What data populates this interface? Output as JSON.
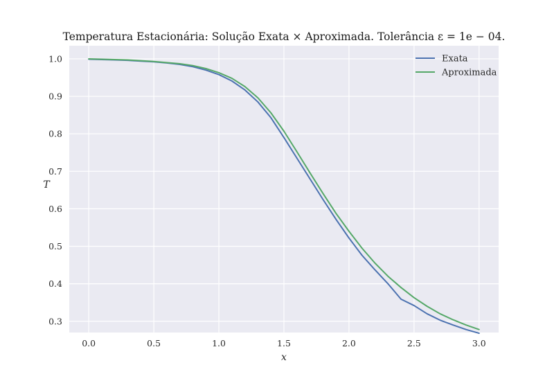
{
  "chart_data": {
    "type": "line",
    "title": "Temperatura Estacionária: Solução Exata × Aproximada. Tolerância ε = 1e − 04.",
    "xlabel": "x",
    "ylabel": "T",
    "xlim": [
      -0.15,
      3.15
    ],
    "ylim": [
      0.27,
      1.035
    ],
    "xticks": [
      0.0,
      0.5,
      1.0,
      1.5,
      2.0,
      2.5,
      3.0
    ],
    "xtick_labels": [
      "0.0",
      "0.5",
      "1.0",
      "1.5",
      "2.0",
      "2.5",
      "3.0"
    ],
    "yticks": [
      0.3,
      0.4,
      0.5,
      0.6,
      0.7,
      0.8,
      0.9,
      1.0
    ],
    "ytick_labels": [
      "0.3",
      "0.4",
      "0.5",
      "0.6",
      "0.7",
      "0.8",
      "0.9",
      "1.0"
    ],
    "grid": true,
    "legend_position": "top-right",
    "background": "#eaeaf2",
    "grid_color": "#ffffff",
    "series": [
      {
        "name": "Exata",
        "color": "#4c72b0",
        "x": [
          0.0,
          0.1,
          0.2,
          0.3,
          0.4,
          0.5,
          0.6,
          0.7,
          0.8,
          0.9,
          1.0,
          1.1,
          1.2,
          1.3,
          1.4,
          1.5,
          1.6,
          1.7,
          1.8,
          1.9,
          2.0,
          2.1,
          2.2,
          2.3,
          2.4,
          2.5,
          2.6,
          2.7,
          2.8,
          2.9,
          3.0
        ],
        "y": [
          0.999,
          0.998,
          0.997,
          0.996,
          0.994,
          0.992,
          0.989,
          0.985,
          0.979,
          0.97,
          0.958,
          0.941,
          0.917,
          0.885,
          0.843,
          0.79,
          0.735,
          0.68,
          0.625,
          0.572,
          0.522,
          0.476,
          0.437,
          0.4,
          0.359,
          0.342,
          0.32,
          0.303,
          0.29,
          0.278,
          0.268
        ]
      },
      {
        "name": "Aproximada",
        "color": "#55a868",
        "x": [
          0.0,
          0.1,
          0.2,
          0.3,
          0.4,
          0.5,
          0.6,
          0.7,
          0.8,
          0.9,
          1.0,
          1.1,
          1.2,
          1.3,
          1.4,
          1.5,
          1.6,
          1.7,
          1.8,
          1.9,
          2.0,
          2.1,
          2.2,
          2.3,
          2.4,
          2.5,
          2.6,
          2.7,
          2.8,
          2.9,
          3.0
        ],
        "y": [
          1.0,
          0.999,
          0.998,
          0.997,
          0.995,
          0.993,
          0.99,
          0.987,
          0.982,
          0.974,
          0.963,
          0.948,
          0.926,
          0.896,
          0.856,
          0.807,
          0.752,
          0.696,
          0.641,
          0.588,
          0.54,
          0.495,
          0.455,
          0.42,
          0.39,
          0.363,
          0.34,
          0.32,
          0.304,
          0.29,
          0.278
        ]
      }
    ]
  }
}
